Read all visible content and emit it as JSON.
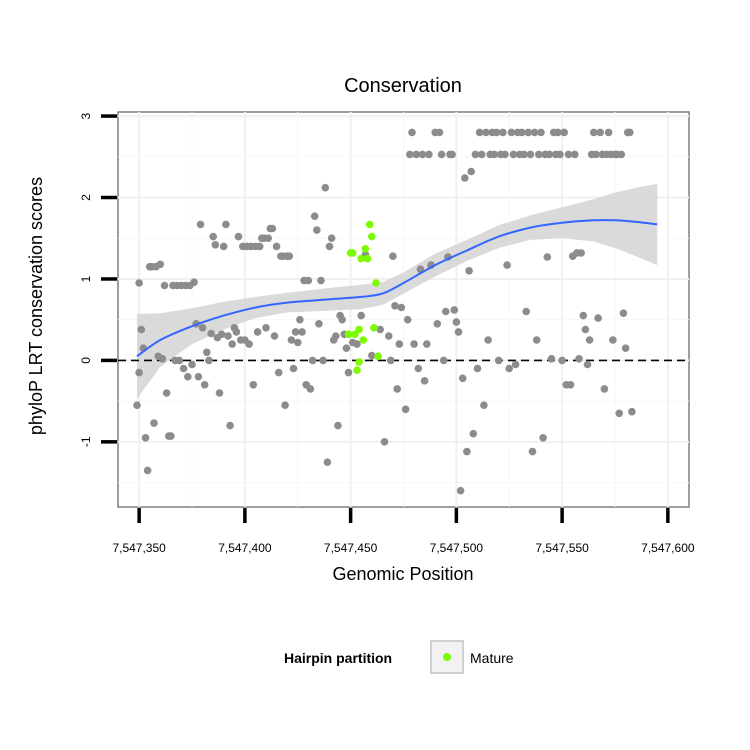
{
  "chart_data": {
    "type": "scatter",
    "title": "Conservation",
    "xlabel": "Genomic Position",
    "ylabel": "phyloP LRT conservation scores",
    "xlim": [
      7547340,
      7547610
    ],
    "ylim": [
      -1.8,
      3.05
    ],
    "x_ticks": [
      7547350,
      7547400,
      7547450,
      7547500,
      7547550,
      7547600
    ],
    "x_tick_labels": [
      "7,547,350",
      "7,547,400",
      "7,547,450",
      "7,547,500",
      "7,547,550",
      "7,547,600"
    ],
    "y_ticks": [
      -1,
      0,
      1,
      2,
      3
    ],
    "y_tick_labels": [
      "-1",
      "0",
      "1",
      "2",
      "3"
    ],
    "reference_line": {
      "y": 0,
      "style": "dashed"
    },
    "grid": true,
    "legend": {
      "title": "Hairpin partition",
      "placement": "bottom",
      "entries": [
        "Mature"
      ]
    },
    "colors": {
      "other": "#8c8c8c",
      "mature": "#7cfc00",
      "smooth": "#3366ff",
      "band": "#d3d3d3"
    },
    "series": [
      {
        "role": "other",
        "points": [
          [
            7547349,
            -0.55
          ],
          [
            7547350,
            -0.15
          ],
          [
            7547350,
            0.95
          ],
          [
            7547351,
            0.38
          ],
          [
            7547352,
            0.15
          ],
          [
            7547353,
            -0.95
          ],
          [
            7547354,
            -1.35
          ],
          [
            7547355,
            1.15
          ],
          [
            7547356,
            1.15
          ],
          [
            7547357,
            -0.77
          ],
          [
            7547358,
            1.15
          ],
          [
            7547359,
            0.05
          ],
          [
            7547360,
            1.18
          ],
          [
            7547361,
            0.02
          ],
          [
            7547362,
            0.92
          ],
          [
            7547363,
            -0.4
          ],
          [
            7547364,
            -0.93
          ],
          [
            7547365,
            -0.93
          ],
          [
            7547366,
            0.92
          ],
          [
            7547367,
            0.0
          ],
          [
            7547368,
            0.92
          ],
          [
            7547369,
            0.0
          ],
          [
            7547370,
            0.92
          ],
          [
            7547371,
            -0.1
          ],
          [
            7547372,
            0.92
          ],
          [
            7547373,
            -0.2
          ],
          [
            7547374,
            0.92
          ],
          [
            7547375,
            -0.05
          ],
          [
            7547376,
            0.96
          ],
          [
            7547377,
            0.45
          ],
          [
            7547378,
            -0.2
          ],
          [
            7547379,
            1.67
          ],
          [
            7547380,
            0.4
          ],
          [
            7547381,
            -0.3
          ],
          [
            7547382,
            0.1
          ],
          [
            7547383,
            0.0
          ],
          [
            7547384,
            0.33
          ],
          [
            7547385,
            1.52
          ],
          [
            7547386,
            1.42
          ],
          [
            7547387,
            0.28
          ],
          [
            7547388,
            -0.4
          ],
          [
            7547389,
            0.32
          ],
          [
            7547390,
            1.4
          ],
          [
            7547391,
            1.67
          ],
          [
            7547392,
            0.3
          ],
          [
            7547393,
            -0.8
          ],
          [
            7547394,
            0.2
          ],
          [
            7547395,
            0.4
          ],
          [
            7547396,
            0.35
          ],
          [
            7547397,
            1.52
          ],
          [
            7547398,
            0.25
          ],
          [
            7547399,
            1.4
          ],
          [
            7547400,
            0.25
          ],
          [
            7547401,
            1.4
          ],
          [
            7547402,
            0.2
          ],
          [
            7547403,
            1.4
          ],
          [
            7547404,
            -0.3
          ],
          [
            7547405,
            1.4
          ],
          [
            7547406,
            0.35
          ],
          [
            7547407,
            1.4
          ],
          [
            7547408,
            1.5
          ],
          [
            7547409,
            1.5
          ],
          [
            7547410,
            0.4
          ],
          [
            7547411,
            1.5
          ],
          [
            7547412,
            1.62
          ],
          [
            7547413,
            1.62
          ],
          [
            7547414,
            0.3
          ],
          [
            7547415,
            1.4
          ],
          [
            7547416,
            -0.15
          ],
          [
            7547417,
            1.28
          ],
          [
            7547418,
            1.28
          ],
          [
            7547419,
            -0.55
          ],
          [
            7547420,
            1.28
          ],
          [
            7547421,
            1.28
          ],
          [
            7547422,
            0.25
          ],
          [
            7547423,
            -0.1
          ],
          [
            7547424,
            0.35
          ],
          [
            7547425,
            0.22
          ],
          [
            7547426,
            0.5
          ],
          [
            7547427,
            0.35
          ],
          [
            7547428,
            0.98
          ],
          [
            7547429,
            -0.3
          ],
          [
            7547430,
            0.98
          ],
          [
            7547431,
            -0.35
          ],
          [
            7547432,
            0.0
          ],
          [
            7547433,
            1.77
          ],
          [
            7547434,
            1.6
          ],
          [
            7547435,
            0.45
          ],
          [
            7547436,
            0.98
          ],
          [
            7547437,
            0.0
          ],
          [
            7547438,
            2.12
          ],
          [
            7547439,
            -1.25
          ],
          [
            7547440,
            1.4
          ],
          [
            7547441,
            1.5
          ],
          [
            7547442,
            0.25
          ],
          [
            7547443,
            0.3
          ],
          [
            7547444,
            -0.8
          ],
          [
            7547445,
            0.55
          ],
          [
            7547446,
            0.5
          ],
          [
            7547447,
            0.32
          ],
          [
            7547448,
            0.15
          ],
          [
            7547449,
            -0.15
          ],
          [
            7547451,
            0.22
          ],
          [
            7547453,
            0.2
          ],
          [
            7547455,
            0.55
          ],
          [
            7547457,
            1.3
          ],
          [
            7547460,
            0.06
          ],
          [
            7547464,
            0.38
          ],
          [
            7547466,
            -1.0
          ],
          [
            7547468,
            0.3
          ],
          [
            7547469,
            0.0
          ],
          [
            7547470,
            1.28
          ],
          [
            7547471,
            0.67
          ],
          [
            7547472,
            -0.35
          ],
          [
            7547473,
            0.2
          ],
          [
            7547474,
            0.65
          ],
          [
            7547476,
            -0.6
          ],
          [
            7547477,
            0.5
          ],
          [
            7547478,
            2.53
          ],
          [
            7547479,
            2.8
          ],
          [
            7547480,
            0.2
          ],
          [
            7547481,
            2.53
          ],
          [
            7547482,
            -0.1
          ],
          [
            7547483,
            1.12
          ],
          [
            7547484,
            2.53
          ],
          [
            7547485,
            -0.25
          ],
          [
            7547486,
            0.2
          ],
          [
            7547487,
            2.53
          ],
          [
            7547488,
            1.17
          ],
          [
            7547490,
            2.8
          ],
          [
            7547491,
            0.45
          ],
          [
            7547492,
            2.8
          ],
          [
            7547493,
            2.53
          ],
          [
            7547494,
            0.0
          ],
          [
            7547495,
            0.6
          ],
          [
            7547496,
            1.27
          ],
          [
            7547497,
            2.53
          ],
          [
            7547498,
            2.53
          ],
          [
            7547499,
            0.62
          ],
          [
            7547500,
            0.47
          ],
          [
            7547501,
            0.35
          ],
          [
            7547502,
            -1.6
          ],
          [
            7547503,
            -0.22
          ],
          [
            7547504,
            2.24
          ],
          [
            7547505,
            -1.12
          ],
          [
            7547506,
            1.1
          ],
          [
            7547507,
            2.32
          ],
          [
            7547508,
            -0.9
          ],
          [
            7547509,
            2.53
          ],
          [
            7547510,
            -0.1
          ],
          [
            7547511,
            2.8
          ],
          [
            7547512,
            2.53
          ],
          [
            7547513,
            -0.55
          ],
          [
            7547514,
            2.8
          ],
          [
            7547515,
            0.25
          ],
          [
            7547516,
            2.53
          ],
          [
            7547517,
            2.8
          ],
          [
            7547518,
            2.53
          ],
          [
            7547519,
            2.8
          ],
          [
            7547520,
            0.0
          ],
          [
            7547521,
            2.53
          ],
          [
            7547522,
            2.8
          ],
          [
            7547523,
            2.53
          ],
          [
            7547524,
            1.17
          ],
          [
            7547525,
            -0.1
          ],
          [
            7547526,
            2.8
          ],
          [
            7547527,
            2.53
          ],
          [
            7547528,
            -0.05
          ],
          [
            7547529,
            2.8
          ],
          [
            7547530,
            2.53
          ],
          [
            7547531,
            2.8
          ],
          [
            7547532,
            2.53
          ],
          [
            7547533,
            0.6
          ],
          [
            7547534,
            2.8
          ],
          [
            7547535,
            2.53
          ],
          [
            7547536,
            -1.12
          ],
          [
            7547537,
            2.8
          ],
          [
            7547538,
            0.25
          ],
          [
            7547539,
            2.53
          ],
          [
            7547540,
            2.8
          ],
          [
            7547541,
            -0.95
          ],
          [
            7547542,
            2.53
          ],
          [
            7547543,
            1.27
          ],
          [
            7547544,
            2.53
          ],
          [
            7547545,
            0.02
          ],
          [
            7547546,
            2.8
          ],
          [
            7547547,
            2.53
          ],
          [
            7547548,
            2.8
          ],
          [
            7547549,
            2.53
          ],
          [
            7547550,
            0.0
          ],
          [
            7547551,
            2.8
          ],
          [
            7547552,
            -0.3
          ],
          [
            7547553,
            2.53
          ],
          [
            7547554,
            -0.3
          ],
          [
            7547555,
            1.28
          ],
          [
            7547556,
            2.53
          ],
          [
            7547557,
            1.32
          ],
          [
            7547558,
            0.02
          ],
          [
            7547559,
            1.32
          ],
          [
            7547560,
            0.55
          ],
          [
            7547561,
            0.38
          ],
          [
            7547562,
            -0.05
          ],
          [
            7547563,
            0.25
          ],
          [
            7547564,
            2.53
          ],
          [
            7547565,
            2.8
          ],
          [
            7547566,
            2.53
          ],
          [
            7547567,
            0.52
          ],
          [
            7547568,
            2.8
          ],
          [
            7547569,
            2.53
          ],
          [
            7547570,
            -0.35
          ],
          [
            7547571,
            2.53
          ],
          [
            7547572,
            2.8
          ],
          [
            7547573,
            2.53
          ],
          [
            7547574,
            0.25
          ],
          [
            7547575,
            2.53
          ],
          [
            7547576,
            2.53
          ],
          [
            7547577,
            -0.65
          ],
          [
            7547578,
            2.53
          ],
          [
            7547579,
            0.58
          ],
          [
            7547580,
            0.15
          ],
          [
            7547581,
            2.8
          ],
          [
            7547582,
            2.8
          ],
          [
            7547583,
            -0.63
          ]
        ]
      },
      {
        "role": "mature",
        "name": "Mature",
        "points": [
          [
            7547450,
            1.32
          ],
          [
            7547451,
            1.32
          ],
          [
            7547452,
            0.32
          ],
          [
            7547453,
            -0.12
          ],
          [
            7547454,
            0.38
          ],
          [
            7547455,
            1.25
          ],
          [
            7547456,
            0.25
          ],
          [
            7547457,
            1.37
          ],
          [
            7547458,
            1.25
          ],
          [
            7547459,
            1.67
          ],
          [
            7547460,
            1.52
          ],
          [
            7547461,
            0.4
          ],
          [
            7547462,
            0.95
          ],
          [
            7547463,
            0.05
          ],
          [
            7547454,
            -0.02
          ],
          [
            7547449,
            0.32
          ]
        ]
      }
    ],
    "smooth": {
      "line": [
        [
          7547349,
          0.05
        ],
        [
          7547360,
          0.25
        ],
        [
          7547375,
          0.42
        ],
        [
          7547390,
          0.55
        ],
        [
          7547405,
          0.65
        ],
        [
          7547420,
          0.71
        ],
        [
          7547440,
          0.75
        ],
        [
          7547455,
          0.78
        ],
        [
          7547465,
          0.82
        ],
        [
          7547475,
          0.95
        ],
        [
          7547490,
          1.17
        ],
        [
          7547505,
          1.35
        ],
        [
          7547520,
          1.52
        ],
        [
          7547535,
          1.63
        ],
        [
          7547550,
          1.69
        ],
        [
          7547565,
          1.72
        ],
        [
          7547575,
          1.72
        ],
        [
          7547585,
          1.7
        ],
        [
          7547595,
          1.67
        ]
      ],
      "lower": [
        [
          7547349,
          -0.47
        ],
        [
          7547360,
          -0.08
        ],
        [
          7547375,
          0.2
        ],
        [
          7547390,
          0.38
        ],
        [
          7547405,
          0.52
        ],
        [
          7547420,
          0.59
        ],
        [
          7547440,
          0.61
        ],
        [
          7547455,
          0.63
        ],
        [
          7547465,
          0.68
        ],
        [
          7547475,
          0.82
        ],
        [
          7547490,
          1.03
        ],
        [
          7547505,
          1.22
        ],
        [
          7547520,
          1.38
        ],
        [
          7547535,
          1.48
        ],
        [
          7547550,
          1.5
        ],
        [
          7547565,
          1.46
        ],
        [
          7547575,
          1.38
        ],
        [
          7547585,
          1.28
        ],
        [
          7547595,
          1.17
        ]
      ],
      "upper": [
        [
          7547349,
          0.57
        ],
        [
          7547360,
          0.58
        ],
        [
          7547375,
          0.64
        ],
        [
          7547390,
          0.72
        ],
        [
          7547405,
          0.78
        ],
        [
          7547420,
          0.83
        ],
        [
          7547440,
          0.89
        ],
        [
          7547455,
          0.93
        ],
        [
          7547465,
          0.96
        ],
        [
          7547475,
          1.08
        ],
        [
          7547490,
          1.31
        ],
        [
          7547505,
          1.48
        ],
        [
          7547520,
          1.66
        ],
        [
          7547535,
          1.78
        ],
        [
          7547550,
          1.88
        ],
        [
          7547565,
          1.98
        ],
        [
          7547575,
          2.06
        ],
        [
          7547585,
          2.12
        ],
        [
          7547595,
          2.17
        ]
      ]
    }
  }
}
